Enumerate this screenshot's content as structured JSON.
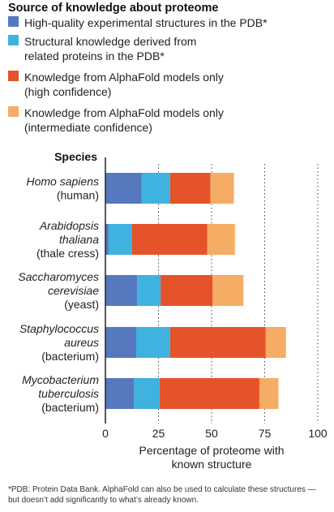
{
  "legend": {
    "title": "Source of knowledge about proteome",
    "items": [
      {
        "lines": [
          "High-quality experimental structures in the PDB*"
        ],
        "color": "#5578be"
      },
      {
        "lines": [
          "Structural knowledge derived from",
          "related proteins in the PDB*"
        ],
        "color": "#3fb2e0"
      },
      {
        "lines": [
          "Knowledge from AlphaFold models only",
          "(high confidence)"
        ],
        "color": "#e5532a"
      },
      {
        "lines": [
          "Knowledge from AlphaFold models only",
          "(intermediate confidence)"
        ],
        "color": "#f5ad65"
      }
    ]
  },
  "chart_data": {
    "type": "bar",
    "orientation": "horizontal",
    "stacked": true,
    "category_header": "Species",
    "categories": [
      {
        "name": "Homo sapiens",
        "common": "(human)"
      },
      {
        "name": "Arabidopsis thaliana",
        "common": "(thale cress)"
      },
      {
        "name": "Saccharomyces cerevisiae",
        "common": "(yeast)"
      },
      {
        "name": "Staphylococcus aureus",
        "common": "(bacterium)"
      },
      {
        "name": "Mycobacterium tuberculosis",
        "common": "(bacterium)"
      }
    ],
    "series": [
      {
        "name": "High-quality experimental structures in the PDB*",
        "color": "#5578be",
        "values": [
          17,
          1.5,
          15,
          14.5,
          13.5
        ]
      },
      {
        "name": "Structural knowledge derived from related proteins in the PDB*",
        "color": "#3fb2e0",
        "values": [
          13.5,
          11,
          11,
          16,
          12
        ]
      },
      {
        "name": "Knowledge from AlphaFold models only (high confidence)",
        "color": "#e5532a",
        "values": [
          19,
          35.5,
          24.5,
          45,
          47
        ]
      },
      {
        "name": "Knowledge from AlphaFold models only (intermediate confidence)",
        "color": "#f5ad65",
        "values": [
          11,
          13,
          14.5,
          9.5,
          9
        ]
      }
    ],
    "xlim": [
      0,
      100
    ],
    "xticks": [
      0,
      25,
      50,
      75,
      100
    ],
    "xlabel": [
      "Percentage of proteome with",
      "known structure"
    ],
    "grid": "vertical dotted"
  },
  "footnote": "*PDB: Protein Data Bank. AlphaFold can also be used to calculate these structures — but doesn’t add significantly to what’s already known."
}
